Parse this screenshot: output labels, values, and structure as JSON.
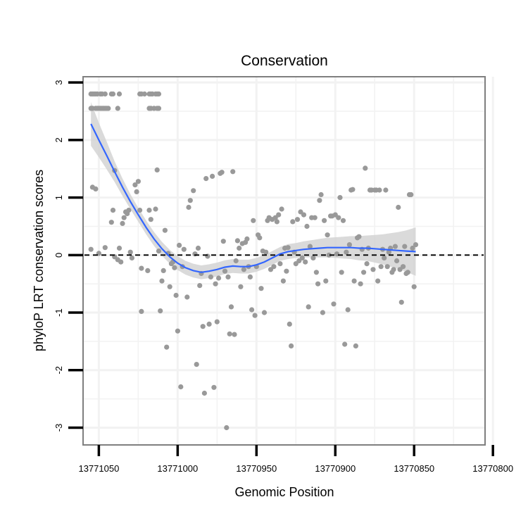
{
  "chart_data": {
    "type": "scatter",
    "title": "Conservation",
    "xlabel": "Genomic Position",
    "ylabel": "phyloP LRT conservation scores",
    "x_reversed": true,
    "xlim": [
      13771060,
      13770805
    ],
    "ylim": [
      -3.3,
      3.1
    ],
    "x_ticks": [
      13771050,
      13771000,
      13770950,
      13770900,
      13770850,
      13770800
    ],
    "x_tick_labels": [
      "13771050",
      "13771000",
      "13770950",
      "13770900",
      "13770850",
      "13770800"
    ],
    "y_ticks": [
      3,
      2,
      1,
      0,
      -1,
      -2,
      -3
    ],
    "y_tick_labels": [
      "3",
      "2",
      "1",
      "0",
      "-1",
      "-2",
      "-3"
    ],
    "reference_line": {
      "y": 0,
      "style": "dashed"
    },
    "colors": {
      "points": "#999999",
      "smooth": "#3366ff",
      "ribbon": "#d4d4d4",
      "frame": "#7f7f7f",
      "grid": "#f2f2f2"
    },
    "points": [
      [
        13771055,
        2.8
      ],
      [
        13771054,
        2.8
      ],
      [
        13771053,
        2.8
      ],
      [
        13771052,
        2.8
      ],
      [
        13771051,
        2.8
      ],
      [
        13771049,
        2.8
      ],
      [
        13771048,
        2.8
      ],
      [
        13771046,
        2.8
      ],
      [
        13771042,
        2.8
      ],
      [
        13771041,
        2.8
      ],
      [
        13771037,
        2.8
      ],
      [
        13771024,
        2.8
      ],
      [
        13771023,
        2.8
      ],
      [
        13771021,
        2.8
      ],
      [
        13771018,
        2.8
      ],
      [
        13771017,
        2.8
      ],
      [
        13771016,
        2.8
      ],
      [
        13771014,
        2.8
      ],
      [
        13771013,
        2.8
      ],
      [
        13771012,
        2.8
      ],
      [
        13771055,
        2.55
      ],
      [
        13771054,
        2.55
      ],
      [
        13771052,
        2.55
      ],
      [
        13771051,
        2.55
      ],
      [
        13771050,
        2.55
      ],
      [
        13771049,
        2.55
      ],
      [
        13771048,
        2.55
      ],
      [
        13771047,
        2.55
      ],
      [
        13771046,
        2.55
      ],
      [
        13771045,
        2.55
      ],
      [
        13771044,
        2.55
      ],
      [
        13771038,
        2.55
      ],
      [
        13771018,
        2.55
      ],
      [
        13771017,
        2.55
      ],
      [
        13771015,
        2.55
      ],
      [
        13771013,
        2.55
      ],
      [
        13771012,
        2.55
      ],
      [
        13771054,
        1.18
      ],
      [
        13771052,
        1.15
      ],
      [
        13771055,
        0.1
      ],
      [
        13771050,
        0.03
      ],
      [
        13771046,
        0.13
      ],
      [
        13771040,
        1.47
      ],
      [
        13771041,
        0.78
      ],
      [
        13771042,
        0.57
      ],
      [
        13771040,
        -0.03
      ],
      [
        13771038,
        -0.08
      ],
      [
        13771037,
        0.12
      ],
      [
        13771036,
        -0.12
      ],
      [
        13771035,
        0.55
      ],
      [
        13771034,
        0.65
      ],
      [
        13771033,
        0.75
      ],
      [
        13771032,
        0.72
      ],
      [
        13771031,
        0.78
      ],
      [
        13771030,
        0.05
      ],
      [
        13771029,
        -0.05
      ],
      [
        13771027,
        1.22
      ],
      [
        13771026,
        1.1
      ],
      [
        13771025,
        1.28
      ],
      [
        13771024,
        0.78
      ],
      [
        13771023,
        -0.23
      ],
      [
        13771023,
        -0.98
      ],
      [
        13771019,
        -0.27
      ],
      [
        13771018,
        0.78
      ],
      [
        13771017,
        0.62
      ],
      [
        13771014,
        0.8
      ],
      [
        13771013,
        1.48
      ],
      [
        13771012,
        0.07
      ],
      [
        13771011,
        -0.97
      ],
      [
        13771010,
        -0.45
      ],
      [
        13771009,
        -0.27
      ],
      [
        13771008,
        0.43
      ],
      [
        13771007,
        -1.6
      ],
      [
        13771006,
        0.03
      ],
      [
        13771005,
        -0.55
      ],
      [
        13771004,
        -0.15
      ],
      [
        13771003,
        -0.12
      ],
      [
        13771002,
        -0.22
      ],
      [
        13771001,
        -0.7
      ],
      [
        13771000,
        -1.32
      ],
      [
        13770999,
        0.17
      ],
      [
        13770998,
        -2.29
      ],
      [
        13770997,
        -0.2
      ],
      [
        13770996,
        0.1
      ],
      [
        13770994,
        -0.73
      ],
      [
        13770993,
        0.83
      ],
      [
        13770992,
        0.95
      ],
      [
        13770990,
        1.12
      ],
      [
        13770989,
        0.02
      ],
      [
        13770988,
        -1.9
      ],
      [
        13770987,
        0.12
      ],
      [
        13770986,
        -0.53
      ],
      [
        13770985,
        -0.32
      ],
      [
        13770984,
        -1.24
      ],
      [
        13770983,
        -2.4
      ],
      [
        13770982,
        1.33
      ],
      [
        13770981,
        -0.02
      ],
      [
        13770980,
        -1.2
      ],
      [
        13770979,
        -0.38
      ],
      [
        13770978,
        1.37
      ],
      [
        13770977,
        -2.3
      ],
      [
        13770976,
        -0.5
      ],
      [
        13770975,
        -1.16
      ],
      [
        13770974,
        -0.4
      ],
      [
        13770973,
        1.42
      ],
      [
        13770972,
        1.44
      ],
      [
        13770971,
        0.24
      ],
      [
        13770970,
        -0.28
      ],
      [
        13770969,
        -3.0
      ],
      [
        13770968,
        -0.38
      ],
      [
        13770967,
        -1.37
      ],
      [
        13770966,
        -0.9
      ],
      [
        13770965,
        1.45
      ],
      [
        13770964,
        -1.38
      ],
      [
        13770963,
        -0.1
      ],
      [
        13770962,
        0.25
      ],
      [
        13770961,
        0.12
      ],
      [
        13770960,
        -0.55
      ],
      [
        13770959,
        0.2
      ],
      [
        13770958,
        -0.25
      ],
      [
        13770957,
        0.22
      ],
      [
        13770956,
        0.28
      ],
      [
        13770955,
        -0.2
      ],
      [
        13770954,
        -0.38
      ],
      [
        13770953,
        -0.95
      ],
      [
        13770952,
        0.6
      ],
      [
        13770951,
        -1.05
      ],
      [
        13770950,
        -0.2
      ],
      [
        13770949,
        0.35
      ],
      [
        13770948,
        0.3
      ],
      [
        13770947,
        -0.58
      ],
      [
        13770946,
        0.07
      ],
      [
        13770945,
        -1.0
      ],
      [
        13770944,
        0.05
      ],
      [
        13770943,
        0.6
      ],
      [
        13770942,
        0.65
      ],
      [
        13770941,
        -0.25
      ],
      [
        13770940,
        0.62
      ],
      [
        13770939,
        -0.2
      ],
      [
        13770938,
        0.65
      ],
      [
        13770937,
        0.58
      ],
      [
        13770936,
        0.7
      ],
      [
        13770935,
        -0.15
      ],
      [
        13770934,
        0.8
      ],
      [
        13770933,
        -0.45
      ],
      [
        13770932,
        0.12
      ],
      [
        13770931,
        -0.28
      ],
      [
        13770930,
        0.13
      ],
      [
        13770929,
        -1.2
      ],
      [
        13770928,
        -1.58
      ],
      [
        13770927,
        0.58
      ],
      [
        13770926,
        0.05
      ],
      [
        13770925,
        -0.15
      ],
      [
        13770924,
        0.62
      ],
      [
        13770923,
        -0.1
      ],
      [
        13770922,
        0.75
      ],
      [
        13770921,
        -0.05
      ],
      [
        13770920,
        0.7
      ],
      [
        13770919,
        -0.12
      ],
      [
        13770918,
        0.5
      ],
      [
        13770917,
        -0.9
      ],
      [
        13770916,
        0.15
      ],
      [
        13770915,
        0.65
      ],
      [
        13770914,
        -0.05
      ],
      [
        13770913,
        0.65
      ],
      [
        13770912,
        -0.3
      ],
      [
        13770911,
        -0.5
      ],
      [
        13770910,
        0.95
      ],
      [
        13770909,
        1.05
      ],
      [
        13770908,
        -1.0
      ],
      [
        13770907,
        0.6
      ],
      [
        13770906,
        -0.45
      ],
      [
        13770905,
        0.35
      ],
      [
        13770904,
        0.0
      ],
      [
        13770903,
        0.68
      ],
      [
        13770902,
        0.68
      ],
      [
        13770901,
        -0.85
      ],
      [
        13770900,
        0.7
      ],
      [
        13770899,
        0.02
      ],
      [
        13770898,
        0.65
      ],
      [
        13770897,
        1.0
      ],
      [
        13770896,
        -0.3
      ],
      [
        13770895,
        0.6
      ],
      [
        13770894,
        -1.55
      ],
      [
        13770893,
        0.05
      ],
      [
        13770892,
        -0.95
      ],
      [
        13770891,
        0.18
      ],
      [
        13770890,
        1.13
      ],
      [
        13770889,
        1.14
      ],
      [
        13770888,
        -0.45
      ],
      [
        13770887,
        -1.58
      ],
      [
        13770886,
        0.3
      ],
      [
        13770885,
        0.32
      ],
      [
        13770884,
        -0.5
      ],
      [
        13770883,
        0.1
      ],
      [
        13770882,
        -0.3
      ],
      [
        13770881,
        1.51
      ],
      [
        13770880,
        -0.15
      ],
      [
        13770879,
        0.12
      ],
      [
        13770878,
        1.13
      ],
      [
        13770877,
        1.13
      ],
      [
        13770876,
        -0.25
      ],
      [
        13770875,
        1.13
      ],
      [
        13770874,
        1.13
      ],
      [
        13770873,
        -0.45
      ],
      [
        13770872,
        1.13
      ],
      [
        13770871,
        -0.2
      ],
      [
        13770870,
        0.1
      ],
      [
        13770869,
        -0.05
      ],
      [
        13770868,
        1.13
      ],
      [
        13770867,
        -0.2
      ],
      [
        13770866,
        0.05
      ],
      [
        13770865,
        0.12
      ],
      [
        13770864,
        -0.3
      ],
      [
        13770863,
        -0.25
      ],
      [
        13770862,
        0.15
      ],
      [
        13770861,
        -0.1
      ],
      [
        13770860,
        0.83
      ],
      [
        13770859,
        -0.25
      ],
      [
        13770858,
        -0.82
      ],
      [
        13770857,
        -0.2
      ],
      [
        13770856,
        0.15
      ],
      [
        13770855,
        -0.32
      ],
      [
        13770854,
        -0.3
      ],
      [
        13770853,
        1.05
      ],
      [
        13770852,
        1.05
      ],
      [
        13770851,
        0.12
      ],
      [
        13770850,
        -0.55
      ],
      [
        13770849,
        0.18
      ]
    ],
    "smooth_line": [
      [
        13771055,
        2.28
      ],
      [
        13771050,
        2.0
      ],
      [
        13771045,
        1.73
      ],
      [
        13771040,
        1.45
      ],
      [
        13771035,
        1.18
      ],
      [
        13771030,
        0.93
      ],
      [
        13771025,
        0.7
      ],
      [
        13771020,
        0.48
      ],
      [
        13771015,
        0.28
      ],
      [
        13771010,
        0.11
      ],
      [
        13771005,
        -0.03
      ],
      [
        13771000,
        -0.14
      ],
      [
        13770995,
        -0.22
      ],
      [
        13770990,
        -0.27
      ],
      [
        13770985,
        -0.3
      ],
      [
        13770980,
        -0.28
      ],
      [
        13770975,
        -0.25
      ],
      [
        13770970,
        -0.21
      ],
      [
        13770965,
        -0.19
      ],
      [
        13770960,
        -0.2
      ],
      [
        13770955,
        -0.2
      ],
      [
        13770950,
        -0.17
      ],
      [
        13770945,
        -0.12
      ],
      [
        13770940,
        -0.05
      ],
      [
        13770935,
        0.02
      ],
      [
        13770930,
        0.06
      ],
      [
        13770925,
        0.08
      ],
      [
        13770920,
        0.1
      ],
      [
        13770915,
        0.11
      ],
      [
        13770910,
        0.12
      ],
      [
        13770905,
        0.13
      ],
      [
        13770900,
        0.13
      ],
      [
        13770895,
        0.13
      ],
      [
        13770890,
        0.13
      ],
      [
        13770885,
        0.12
      ],
      [
        13770880,
        0.12
      ],
      [
        13770875,
        0.11
      ],
      [
        13770870,
        0.1
      ],
      [
        13770865,
        0.09
      ],
      [
        13770860,
        0.08
      ],
      [
        13770855,
        0.07
      ],
      [
        13770849,
        0.06
      ]
    ],
    "ribbon_halfwidth": [
      [
        13771055,
        0.38
      ],
      [
        13771050,
        0.3
      ],
      [
        13771045,
        0.24
      ],
      [
        13771040,
        0.18
      ],
      [
        13771035,
        0.15
      ],
      [
        13771030,
        0.13
      ],
      [
        13771025,
        0.12
      ],
      [
        13771020,
        0.12
      ],
      [
        13771015,
        0.12
      ],
      [
        13771010,
        0.12
      ],
      [
        13771005,
        0.12
      ],
      [
        13771000,
        0.12
      ],
      [
        13770995,
        0.12
      ],
      [
        13770990,
        0.12
      ],
      [
        13770985,
        0.12
      ],
      [
        13770980,
        0.12
      ],
      [
        13770975,
        0.12
      ],
      [
        13770970,
        0.12
      ],
      [
        13770965,
        0.12
      ],
      [
        13770960,
        0.12
      ],
      [
        13770955,
        0.12
      ],
      [
        13770950,
        0.12
      ],
      [
        13770945,
        0.12
      ],
      [
        13770940,
        0.12
      ],
      [
        13770935,
        0.12
      ],
      [
        13770930,
        0.13
      ],
      [
        13770925,
        0.13
      ],
      [
        13770920,
        0.14
      ],
      [
        13770915,
        0.15
      ],
      [
        13770910,
        0.16
      ],
      [
        13770905,
        0.17
      ],
      [
        13770900,
        0.18
      ],
      [
        13770895,
        0.19
      ],
      [
        13770890,
        0.2
      ],
      [
        13770885,
        0.21
      ],
      [
        13770880,
        0.22
      ],
      [
        13770875,
        0.24
      ],
      [
        13770870,
        0.26
      ],
      [
        13770865,
        0.29
      ],
      [
        13770860,
        0.32
      ],
      [
        13770855,
        0.36
      ],
      [
        13770849,
        0.42
      ]
    ]
  }
}
